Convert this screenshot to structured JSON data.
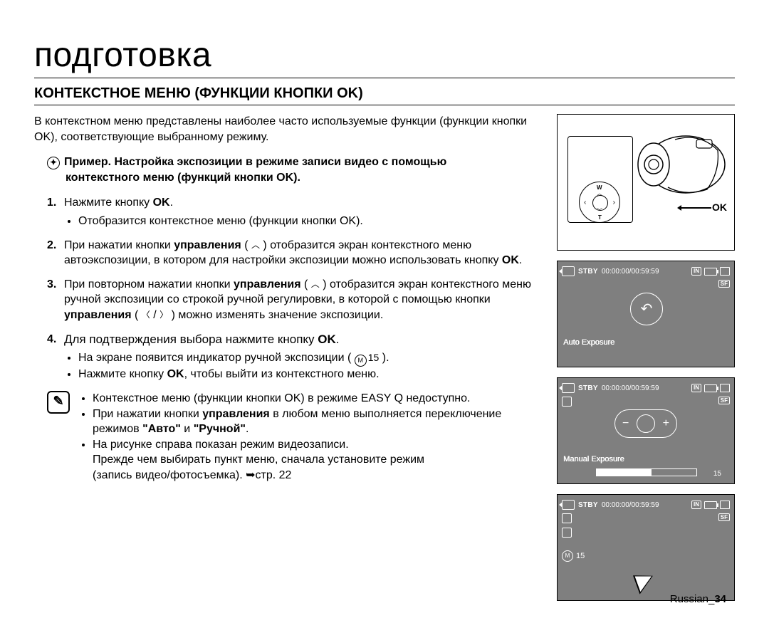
{
  "page": {
    "title": "подготовка",
    "subtitle": "КОНТЕКСТНОЕ МЕНЮ (ФУНКЦИИ КНОПКИ OK)",
    "intro": "В контекстном меню представлены наиболее часто используемые функции (функции кнопки OK), соответствующие выбранному режиму.",
    "example_prefix": "Пример.",
    "example_line1": "Настройка экспозиции в режиме записи видео с помощью",
    "example_line2": "контекстного меню (функций кнопки OK).",
    "footer_label": "Russian_",
    "footer_page": "34"
  },
  "ok_label": "OK",
  "dpad": {
    "w": "W",
    "t": "T"
  },
  "steps": [
    {
      "n": "1.",
      "pre": "Нажмите кнопку ",
      "bold": "OK",
      "post": ".",
      "sub": [
        "Отобразится контекстное меню (функции кнопки OK)."
      ]
    },
    {
      "n": "2.",
      "line_a": "При нажатии кнопки ",
      "line_b": "управления",
      "line_c": " ( ",
      "chev1": "︿",
      "line_d": " ) отобразится экран контекстного меню автоэкспозиции, в котором для настройки экспозиции можно использовать кнопку ",
      "line_e": "OK",
      "line_f": "."
    },
    {
      "n": "3.",
      "t1": "При повторном нажатии кнопки ",
      "t2": "управления",
      "t3": " ( ",
      "chev": "︿",
      "t4": " ) отобразится экран контекстного меню ручной экспозиции со строкой ручной регулировки, в которой с помощью кнопки ",
      "t5": "управления",
      "t6": " ( ",
      "chevL": "〈",
      "t7": " / ",
      "chevR": "〉",
      "t8": " ) можно изменять значение экспозиции."
    },
    {
      "n": "4.",
      "h1": "Для подтверждения выбора нажмите кнопку ",
      "h2": "OK",
      "h3": ".",
      "s1a": "На экране появится индикатор ручной экспозиции ( ",
      "s1_m": "M",
      "s1_v": "15",
      "s1b": " ).",
      "s2a": "Нажмите кнопку ",
      "s2b": "OK",
      "s2c": ", чтобы выйти из контекстного меню."
    }
  ],
  "notes": {
    "n1": "Контекстное меню (функции кнопки OK) в режиме EASY Q недоступно.",
    "n2a": "При нажатии кнопки ",
    "n2b": "управления",
    "n2c": " в любом меню выполняется переключение режимов ",
    "n2d": "\"Авто\"",
    "n2e": " и ",
    "n2f": "\"Ручной\"",
    "n2g": ".",
    "n3a": "На рисунке справа показан режим видеозаписи.",
    "n3b": "Прежде чем выбирать пункт меню, сначала установите режим",
    "n3c": "(запись видео/фотосъемка). ➥стр. 22"
  },
  "lcd": {
    "stby": "STBY",
    "time": "00:00:00/00:59:59",
    "in": "IN",
    "sf": "SF",
    "auto_label": "Auto Exposure",
    "manual_label": "Manual Exposure",
    "slider_fill_pct": 55,
    "slider_value": "15",
    "m_label": "M",
    "m_value": "15",
    "colors": {
      "bg": "#7f7f7f",
      "fg": "#ffffff",
      "border": "#000000"
    }
  }
}
